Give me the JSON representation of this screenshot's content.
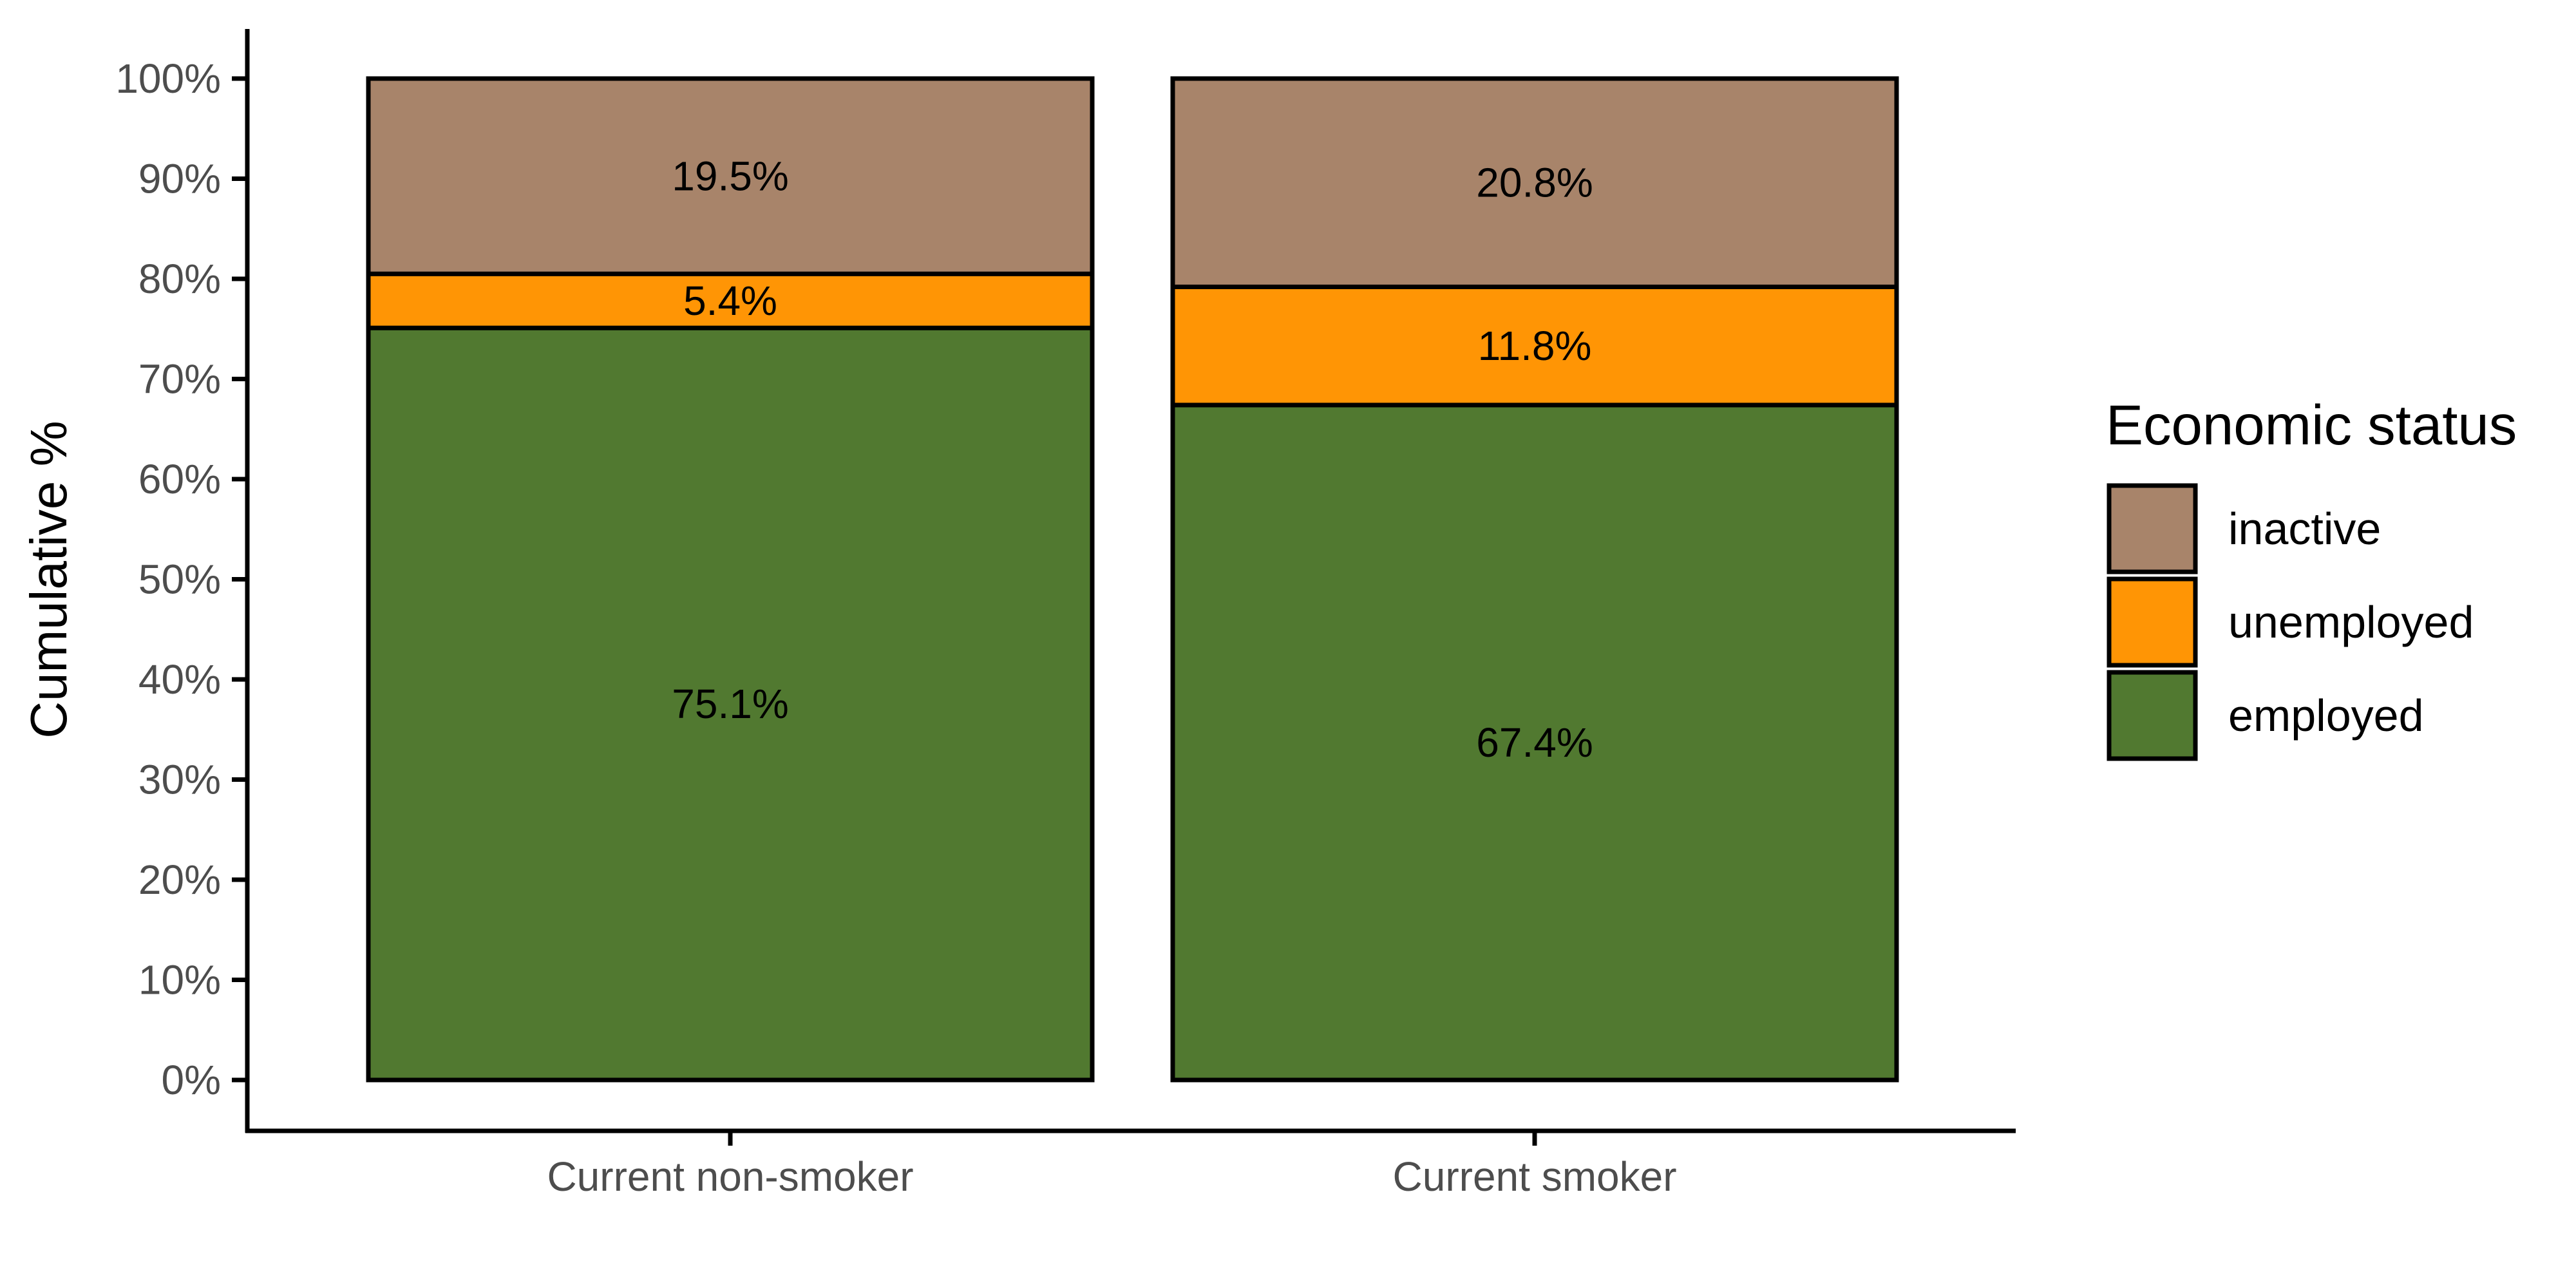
{
  "chart_data": {
    "type": "bar",
    "stacked": true,
    "categories": [
      "Current non-smoker",
      "Current smoker"
    ],
    "ylabel": "Cumulative %",
    "ylim": [
      0,
      100
    ],
    "yticks": [
      "0%",
      "10%",
      "20%",
      "30%",
      "40%",
      "50%",
      "60%",
      "70%",
      "80%",
      "90%",
      "100%"
    ],
    "legend": {
      "title": "Economic status",
      "position": "right",
      "items": [
        {
          "label": "inactive",
          "color": "#a8846a"
        },
        {
          "label": "unemployed",
          "color": "#ff9505"
        },
        {
          "label": "employed",
          "color": "#517930"
        }
      ]
    },
    "series": [
      {
        "name": "employed",
        "color": "#517930",
        "values": [
          75.1,
          67.4
        ],
        "labels": [
          "75.1%",
          "67.4%"
        ]
      },
      {
        "name": "unemployed",
        "color": "#ff9505",
        "values": [
          5.4,
          11.8
        ],
        "labels": [
          "5.4%",
          "11.8%"
        ]
      },
      {
        "name": "inactive",
        "color": "#a8846a",
        "values": [
          19.5,
          20.8
        ],
        "labels": [
          "19.5%",
          "20.8%"
        ]
      }
    ]
  }
}
